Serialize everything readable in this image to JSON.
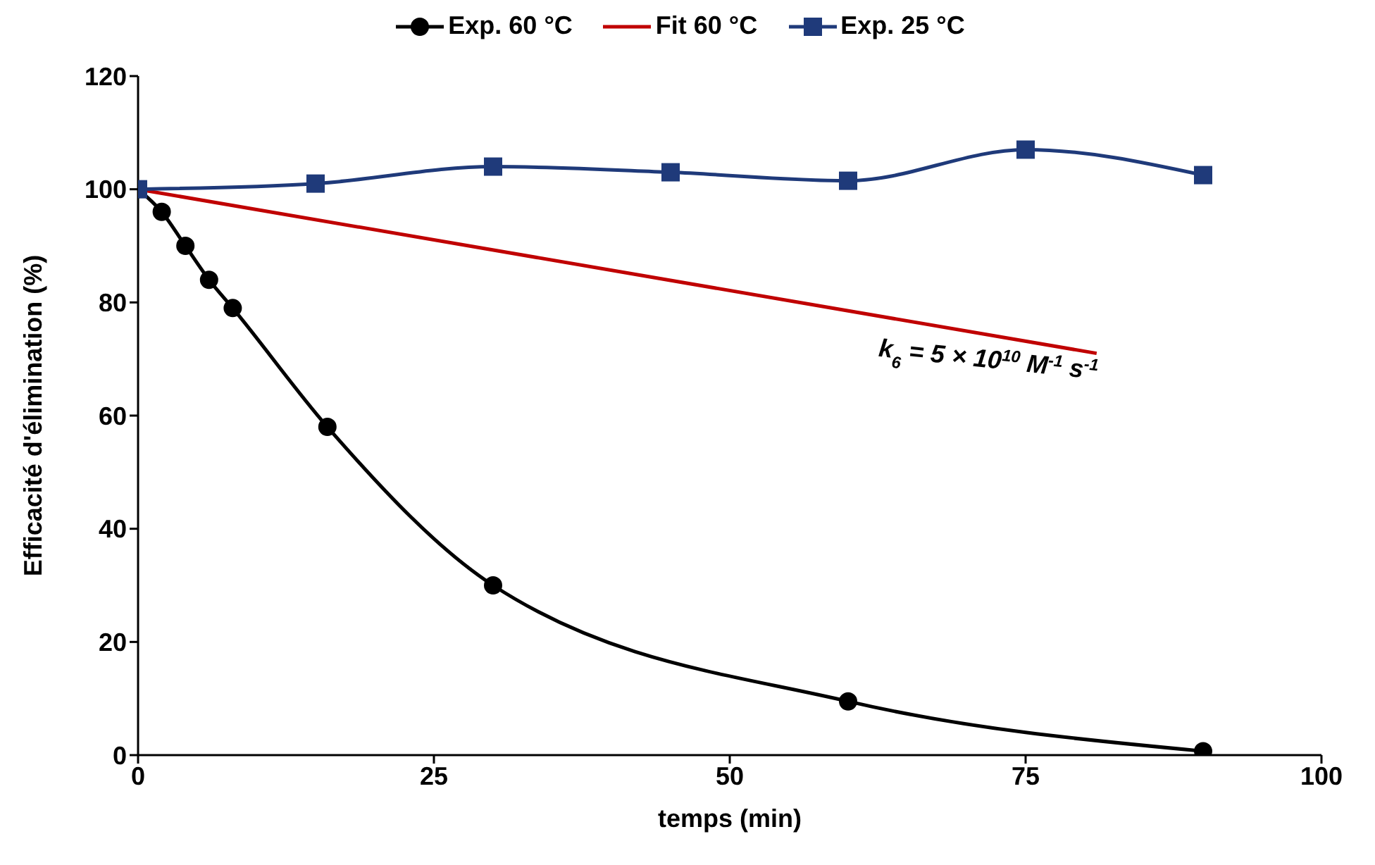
{
  "chart_data": {
    "type": "line",
    "xlabel": "temps (min)",
    "ylabel": "Efficacité d'élimination (%)",
    "xlim": [
      0,
      100
    ],
    "xticks": [
      0,
      25,
      50,
      75,
      100
    ],
    "ylim": [
      0,
      120
    ],
    "yticks": [
      0,
      20,
      40,
      60,
      80,
      100,
      120
    ],
    "grid": false,
    "legend": "top",
    "line_style": "solid",
    "series": [
      {
        "name": "Exp. 60 °C",
        "color": "#000000",
        "marker": "circle",
        "x": [
          0,
          2,
          4,
          6,
          8,
          16,
          30,
          60,
          90
        ],
        "values": [
          100,
          96,
          90,
          84,
          79,
          58,
          30,
          9.5,
          0.7
        ]
      },
      {
        "name": "Fit 60 °C",
        "color": "#c00000",
        "marker": "none",
        "x": [
          0,
          81
        ],
        "values": [
          100,
          71
        ]
      },
      {
        "name": "Exp. 25 °C",
        "color": "#1f3a7a",
        "marker": "square",
        "x": [
          0,
          15,
          30,
          45,
          60,
          75,
          90
        ],
        "values": [
          100,
          101,
          104,
          103,
          101.5,
          107,
          102.5
        ]
      }
    ],
    "annotations": [
      "k$_{6}$ = 5 × 10$^{10}$ M$^{-1}$ s$^{-1}$"
    ]
  }
}
